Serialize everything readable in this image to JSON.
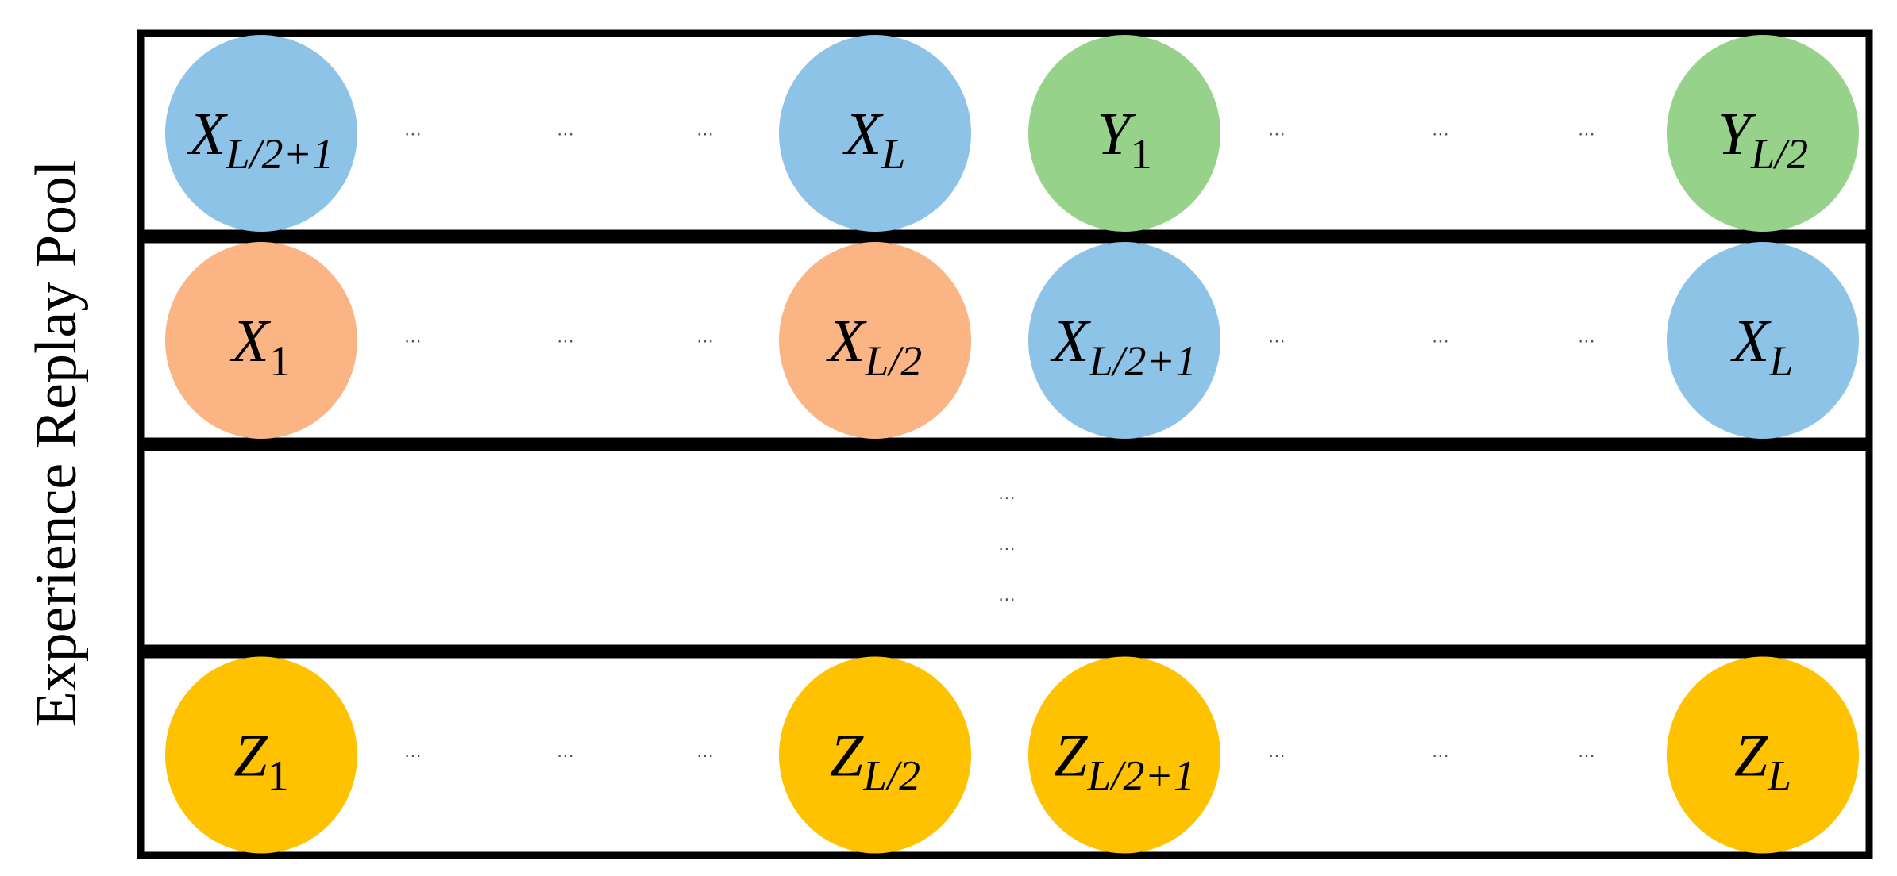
{
  "title": "Experience Replay Pool",
  "colors": {
    "blue": "#8DC3E6",
    "green": "#96D28A",
    "orange": "#FBB584",
    "yellow": "#FEC200",
    "border": "#000000"
  },
  "ellipsis": "⋯",
  "vertical_ellipsis": "⋮",
  "rows": [
    {
      "nodes": [
        {
          "base": "X",
          "sub": "L/2+1",
          "color": "blue"
        },
        {
          "base": "X",
          "sub": "L",
          "color": "blue"
        },
        {
          "base": "Y",
          "sub": "1",
          "color": "green"
        },
        {
          "base": "Y",
          "sub": "L/2",
          "color": "green"
        }
      ]
    },
    {
      "nodes": [
        {
          "base": "X",
          "sub": "1",
          "color": "orange"
        },
        {
          "base": "X",
          "sub": "L/2",
          "color": "orange"
        },
        {
          "base": "X",
          "sub": "L/2+1",
          "color": "blue"
        },
        {
          "base": "X",
          "sub": "L",
          "color": "blue"
        }
      ]
    },
    {
      "ellipsis_row": true
    },
    {
      "nodes": [
        {
          "base": "Z",
          "sub": "1",
          "color": "yellow"
        },
        {
          "base": "Z",
          "sub": "L/2",
          "color": "yellow"
        },
        {
          "base": "Z",
          "sub": "L/2+1",
          "color": "yellow"
        },
        {
          "base": "Z",
          "sub": "L",
          "color": "yellow"
        }
      ]
    }
  ]
}
